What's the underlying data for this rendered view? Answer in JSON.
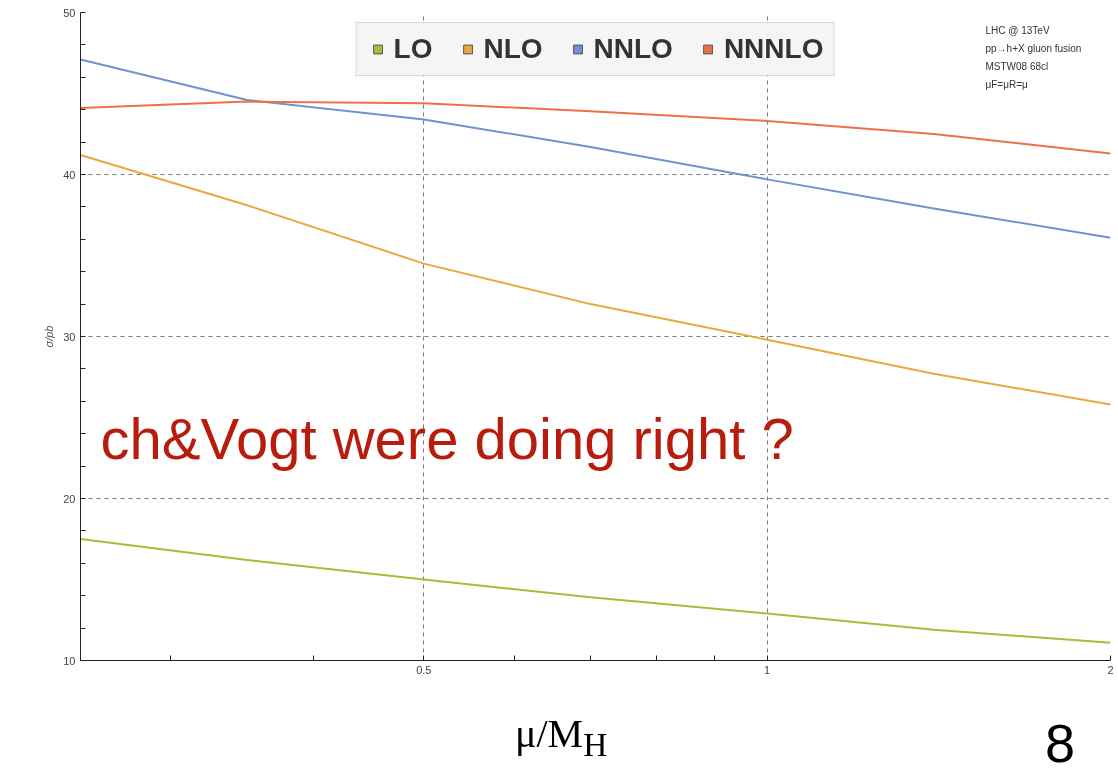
{
  "chart_data": {
    "type": "line",
    "xlabel": "μ/M$_{H}$",
    "ylabel": "σ/pb",
    "log": "x",
    "x": [
      0.25,
      0.35,
      0.5,
      0.7,
      1,
      1.4,
      2
    ],
    "series": [
      {
        "name": "LO",
        "color": "#9dc23a",
        "values": [
          17.5,
          16.2,
          15.0,
          13.9,
          12.9,
          11.9,
          11.1
        ]
      },
      {
        "name": "NLO",
        "color": "#e8a93a",
        "values": [
          41.2,
          38.1,
          34.5,
          32.0,
          29.8,
          27.7,
          25.8
        ]
      },
      {
        "name": "NNLO",
        "color": "#6c94cf",
        "values": [
          47.1,
          44.6,
          43.4,
          41.7,
          39.7,
          37.9,
          36.1
        ]
      },
      {
        "name": "NNNLO",
        "color": "#ee7048",
        "values": [
          44.1,
          44.5,
          44.4,
          43.9,
          43.3,
          42.5,
          41.3
        ]
      }
    ],
    "xlim": [
      0.25,
      2
    ],
    "ylim": [
      10,
      50
    ],
    "xticks": [
      {
        "value": 0.3,
        "label": null
      },
      {
        "value": 0.4,
        "label": null
      },
      0.5,
      {
        "value": 0.6,
        "label": null
      },
      {
        "value": 0.7,
        "label": null
      },
      {
        "value": 0.8,
        "label": null
      },
      {
        "value": 0.9,
        "label": null
      },
      1,
      2
    ],
    "yticks": [
      10,
      {
        "value": 12,
        "label": null
      },
      {
        "value": 14,
        "label": null
      },
      {
        "value": 16,
        "label": null
      },
      {
        "value": 18,
        "label": null
      },
      20,
      {
        "value": 22,
        "label": null
      },
      {
        "value": 24,
        "label": null
      },
      {
        "value": 26,
        "label": null
      },
      {
        "value": 28,
        "label": null
      },
      30,
      {
        "value": 32,
        "label": null
      },
      {
        "value": 34,
        "label": null
      },
      {
        "value": 36,
        "label": null
      },
      {
        "value": 38,
        "label": null
      },
      40,
      {
        "value": 42,
        "label": null
      },
      {
        "value": 44,
        "label": null
      },
      {
        "value": 46,
        "label": null
      },
      {
        "value": 48,
        "label": null
      },
      50
    ],
    "grid": true,
    "legend": "top",
    "marker": "none",
    "line_style": "solid",
    "annotations": [
      "LHC @ 13TeV",
      "pp→h+X gluon fusion",
      "MSTW08 68cl",
      "μF=μR=μ",
      "ch&Vogt were doing right ?",
      "8"
    ]
  }
}
